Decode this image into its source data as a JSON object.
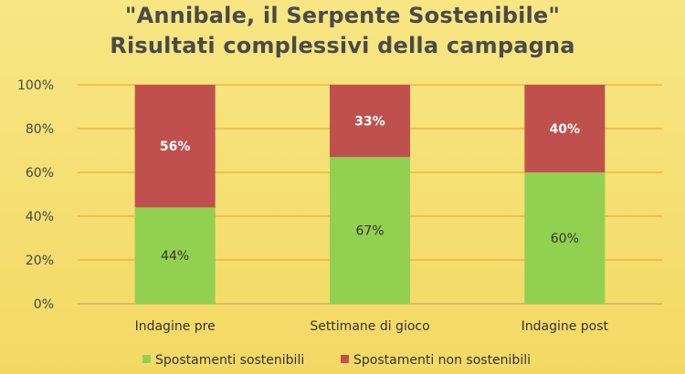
{
  "chart_data": {
    "type": "bar",
    "stacked": true,
    "title": "\"Annibale, il Serpente Sostenibile\"",
    "subtitle": "Risultati complessivi della campagna",
    "categories": [
      "Indagine pre",
      "Settimane di gioco",
      "Indagine post"
    ],
    "series": [
      {
        "name": "Spostamenti sostenibili",
        "color": "#92d050",
        "values": [
          44,
          67,
          60
        ],
        "labels": [
          "44%",
          "67%",
          "60%"
        ]
      },
      {
        "name": "Spostamenti non sostenibili",
        "color": "#c0504d",
        "values": [
          56,
          33,
          40
        ],
        "labels": [
          "56%",
          "33%",
          "40%"
        ]
      }
    ],
    "y_ticks": [
      "0%",
      "20%",
      "40%",
      "60%",
      "80%",
      "100%"
    ],
    "ylim": [
      0,
      100
    ],
    "grid": true,
    "legend_position": "bottom",
    "colors": {
      "gridline": "#f2a93b",
      "background": "#f5df72"
    }
  }
}
